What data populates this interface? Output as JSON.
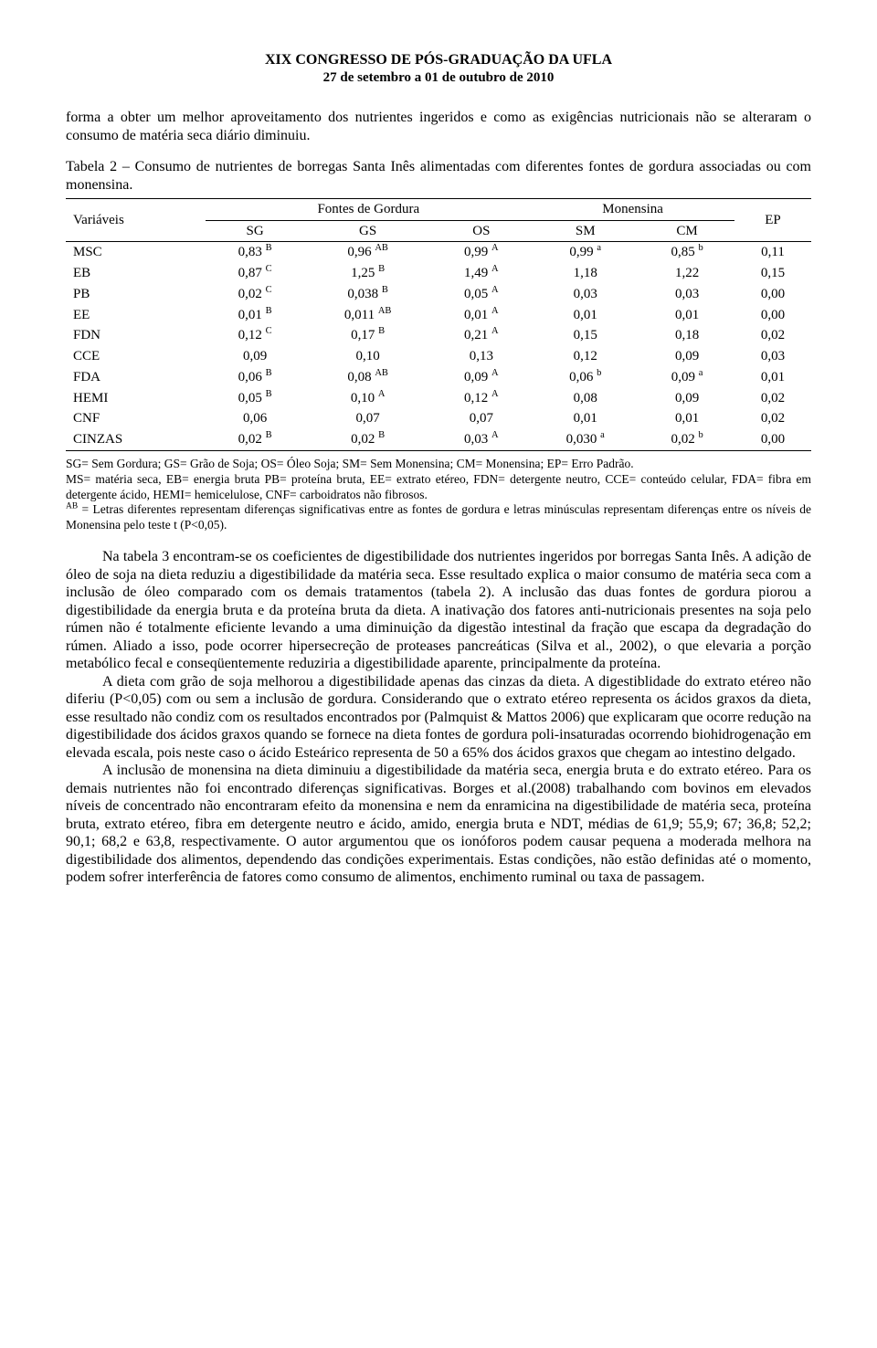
{
  "header": {
    "title": "XIX CONGRESSO DE PÓS-GRADUAÇÃO DA UFLA",
    "subtitle": "27 de setembro a 01 de outubro de 2010"
  },
  "intro_para": "forma a obter um melhor aproveitamento dos nutrientes ingeridos e como as exigências nutricionais não se alteraram o consumo de matéria seca diário diminuiu.",
  "table": {
    "caption": "Tabela 2 – Consumo de nutrientes de borregas Santa Inês alimentadas com diferentes fontes de gordura associadas ou com monensina.",
    "group_header_1": "Fontes de Gordura",
    "group_header_2": "Monensina",
    "ep_header": "EP",
    "col_variaveis": "Variáveis",
    "cols": [
      "SG",
      "GS",
      "OS",
      "SM",
      "CM"
    ],
    "rows": [
      {
        "var": "MSC",
        "sg": "0,83",
        "sg_sup": "B",
        "gs": "0,96",
        "gs_sup": "AB",
        "os": "0,99",
        "os_sup": "A",
        "sm": "0,99",
        "sm_sup": "a",
        "cm": "0,85",
        "cm_sup": "b",
        "ep": "0,11"
      },
      {
        "var": "EB",
        "sg": "0,87",
        "sg_sup": "C",
        "gs": "1,25",
        "gs_sup": "B",
        "os": "1,49",
        "os_sup": "A",
        "sm": "1,18",
        "sm_sup": "",
        "cm": "1,22",
        "cm_sup": "",
        "ep": "0,15"
      },
      {
        "var": "PB",
        "sg": "0,02",
        "sg_sup": "C",
        "gs": "0,038",
        "gs_sup": "B",
        "os": "0,05",
        "os_sup": "A",
        "sm": "0,03",
        "sm_sup": "",
        "cm": "0,03",
        "cm_sup": "",
        "ep": "0,00"
      },
      {
        "var": "EE",
        "sg": "0,01",
        "sg_sup": "B",
        "gs": "0,011",
        "gs_sup": "AB",
        "os": "0,01",
        "os_sup": "A",
        "sm": "0,01",
        "sm_sup": "",
        "cm": "0,01",
        "cm_sup": "",
        "ep": "0,00"
      },
      {
        "var": "FDN",
        "sg": "0,12",
        "sg_sup": "C",
        "gs": "0,17",
        "gs_sup": "B",
        "os": "0,21",
        "os_sup": "A",
        "sm": "0,15",
        "sm_sup": "",
        "cm": "0,18",
        "cm_sup": "",
        "ep": "0,02"
      },
      {
        "var": "CCE",
        "sg": "0,09",
        "sg_sup": "",
        "gs": "0,10",
        "gs_sup": "",
        "os": "0,13",
        "os_sup": "",
        "sm": "0,12",
        "sm_sup": "",
        "cm": "0,09",
        "cm_sup": "",
        "ep": "0,03"
      },
      {
        "var": "FDA",
        "sg": "0,06",
        "sg_sup": "B",
        "gs": "0,08",
        "gs_sup": "AB",
        "os": "0,09",
        "os_sup": "A",
        "sm": "0,06",
        "sm_sup": "b",
        "cm": "0,09",
        "cm_sup": "a",
        "ep": "0,01"
      },
      {
        "var": "HEMI",
        "sg": "0,05",
        "sg_sup": "B",
        "gs": "0,10",
        "gs_sup": "A",
        "os": "0,12",
        "os_sup": "A",
        "sm": "0,08",
        "sm_sup": "",
        "cm": "0,09",
        "cm_sup": "",
        "ep": "0,02"
      },
      {
        "var": "CNF",
        "sg": "0,06",
        "sg_sup": "",
        "gs": "0,07",
        "gs_sup": "",
        "os": "0,07",
        "os_sup": "",
        "sm": "0,01",
        "sm_sup": "",
        "cm": "0,01",
        "cm_sup": "",
        "ep": "0,02"
      },
      {
        "var": "CINZAS",
        "sg": "0,02",
        "sg_sup": "B",
        "gs": "0,02",
        "gs_sup": "B",
        "os": "0,03",
        "os_sup": "A",
        "sm": "0,030",
        "sm_sup": "a",
        "cm": "0,02",
        "cm_sup": "b",
        "ep": "0,00"
      }
    ],
    "style": {
      "type": "table",
      "font_size": 15,
      "rule_color": "#000000",
      "text_color": "#000000",
      "background_color": "#ffffff",
      "col_count": 7,
      "row_count": 10,
      "group_border_bottom_cols": [
        1,
        2,
        3,
        4,
        5
      ],
      "header_align": "center",
      "body_align": "center",
      "first_col_align": "left"
    }
  },
  "footnotes": {
    "fn1": "SG= Sem Gordura; GS= Grão de Soja; OS= Óleo Soja; SM= Sem Monensina; CM= Monensina; EP= Erro Padrão.",
    "fn2": "MS= matéria seca, EB= energia bruta PB= proteína bruta, EE= extrato etéreo, FDN= detergente neutro, CCE= conteúdo celular, FDA= fibra em detergente ácido, HEMI= hemicelulose, CNF= carboidratos não fibrosos.",
    "fn3_sup": "AB",
    "fn3": " = Letras diferentes representam diferenças significativas entre as fontes de gordura e letras minúsculas representam diferenças entre os níveis de Monensina pelo teste t (P<0,05)."
  },
  "body": {
    "p1": "Na tabela 3 encontram-se os coeficientes de digestibilidade dos nutrientes ingeridos por borregas Santa Inês. A adição de óleo de soja na dieta reduziu a digestibilidade da matéria seca. Esse resultado explica o maior consumo de matéria seca com a inclusão de óleo comparado com os demais tratamentos (tabela 2). A inclusão das duas fontes de gordura piorou a digestibilidade da energia bruta e da proteína bruta da dieta. A inativação dos fatores anti-nutricionais presentes na soja pelo rúmen não é totalmente eficiente levando a uma diminuição da digestão intestinal da fração que escapa da degradação do rúmen. Aliado a isso, pode ocorrer hipersecreção de proteases pancreáticas (Silva et al., 2002), o que elevaria a porção metabólico fecal e conseqüentemente reduziria a digestibilidade aparente, principalmente da proteína.",
    "p2": "A dieta com grão de soja melhorou a digestibilidade apenas das cinzas da dieta. A digestiblidade do extrato etéreo não diferiu (P<0,05) com ou sem a inclusão de gordura. Considerando que o extrato etéreo representa os ácidos graxos da dieta, esse resultado não condiz com os resultados encontrados por (Palmquist & Mattos 2006) que explicaram que ocorre redução na digestibilidade dos ácidos graxos quando se fornece na dieta fontes de gordura poli-insaturadas ocorrendo biohidrogenação em elevada escala, pois neste caso o ácido Esteárico representa de 50 a 65% dos ácidos graxos que chegam ao intestino delgado.",
    "p3": "A inclusão de monensina na dieta diminuiu a digestibilidade da matéria seca, energia bruta e do extrato etéreo. Para os demais nutrientes não foi encontrado diferenças significativas. Borges et al.(2008) trabalhando com bovinos em elevados níveis de concentrado não encontraram efeito da monensina e nem da enramicina na digestibilidade de matéria seca, proteína bruta, extrato etéreo, fibra em detergente neutro e ácido, amido, energia bruta e NDT, médias de 61,9; 55,9; 67; 36,8; 52,2; 90,1; 68,2 e 63,8, respectivamente. O autor argumentou que os ionóforos podem causar pequena a moderada melhora na digestibilidade dos alimentos, dependendo das condições experimentais. Estas condições, não estão definidas até o momento, podem sofrer interferência de fatores como consumo de alimentos, enchimento ruminal ou taxa de passagem."
  }
}
